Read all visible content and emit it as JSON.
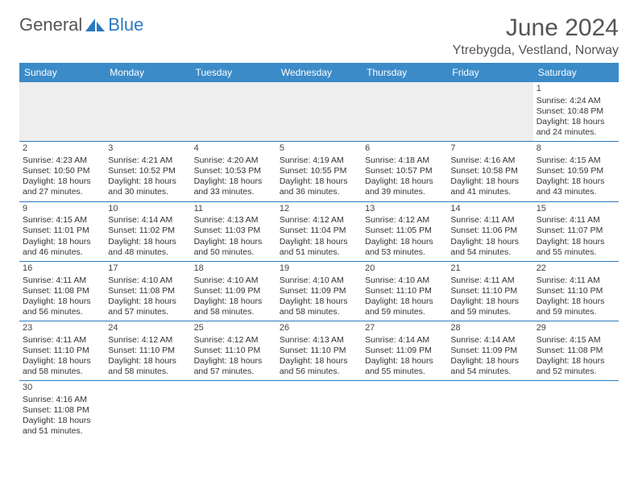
{
  "branding": {
    "word1": "General",
    "word2": "Blue",
    "logo_color": "#2a7ac0"
  },
  "header": {
    "title": "June 2024",
    "location": "Ytrebygda, Vestland, Norway"
  },
  "colors": {
    "header_bg": "#3b8bc9",
    "header_text": "#ffffff",
    "border": "#2a7ac0",
    "text": "#333333"
  },
  "weekdays": [
    "Sunday",
    "Monday",
    "Tuesday",
    "Wednesday",
    "Thursday",
    "Friday",
    "Saturday"
  ],
  "weeks": [
    [
      null,
      null,
      null,
      null,
      null,
      null,
      {
        "n": "1",
        "sr": "Sunrise: 4:24 AM",
        "ss": "Sunset: 10:48 PM",
        "d1": "Daylight: 18 hours",
        "d2": "and 24 minutes."
      }
    ],
    [
      {
        "n": "2",
        "sr": "Sunrise: 4:23 AM",
        "ss": "Sunset: 10:50 PM",
        "d1": "Daylight: 18 hours",
        "d2": "and 27 minutes."
      },
      {
        "n": "3",
        "sr": "Sunrise: 4:21 AM",
        "ss": "Sunset: 10:52 PM",
        "d1": "Daylight: 18 hours",
        "d2": "and 30 minutes."
      },
      {
        "n": "4",
        "sr": "Sunrise: 4:20 AM",
        "ss": "Sunset: 10:53 PM",
        "d1": "Daylight: 18 hours",
        "d2": "and 33 minutes."
      },
      {
        "n": "5",
        "sr": "Sunrise: 4:19 AM",
        "ss": "Sunset: 10:55 PM",
        "d1": "Daylight: 18 hours",
        "d2": "and 36 minutes."
      },
      {
        "n": "6",
        "sr": "Sunrise: 4:18 AM",
        "ss": "Sunset: 10:57 PM",
        "d1": "Daylight: 18 hours",
        "d2": "and 39 minutes."
      },
      {
        "n": "7",
        "sr": "Sunrise: 4:16 AM",
        "ss": "Sunset: 10:58 PM",
        "d1": "Daylight: 18 hours",
        "d2": "and 41 minutes."
      },
      {
        "n": "8",
        "sr": "Sunrise: 4:15 AM",
        "ss": "Sunset: 10:59 PM",
        "d1": "Daylight: 18 hours",
        "d2": "and 43 minutes."
      }
    ],
    [
      {
        "n": "9",
        "sr": "Sunrise: 4:15 AM",
        "ss": "Sunset: 11:01 PM",
        "d1": "Daylight: 18 hours",
        "d2": "and 46 minutes."
      },
      {
        "n": "10",
        "sr": "Sunrise: 4:14 AM",
        "ss": "Sunset: 11:02 PM",
        "d1": "Daylight: 18 hours",
        "d2": "and 48 minutes."
      },
      {
        "n": "11",
        "sr": "Sunrise: 4:13 AM",
        "ss": "Sunset: 11:03 PM",
        "d1": "Daylight: 18 hours",
        "d2": "and 50 minutes."
      },
      {
        "n": "12",
        "sr": "Sunrise: 4:12 AM",
        "ss": "Sunset: 11:04 PM",
        "d1": "Daylight: 18 hours",
        "d2": "and 51 minutes."
      },
      {
        "n": "13",
        "sr": "Sunrise: 4:12 AM",
        "ss": "Sunset: 11:05 PM",
        "d1": "Daylight: 18 hours",
        "d2": "and 53 minutes."
      },
      {
        "n": "14",
        "sr": "Sunrise: 4:11 AM",
        "ss": "Sunset: 11:06 PM",
        "d1": "Daylight: 18 hours",
        "d2": "and 54 minutes."
      },
      {
        "n": "15",
        "sr": "Sunrise: 4:11 AM",
        "ss": "Sunset: 11:07 PM",
        "d1": "Daylight: 18 hours",
        "d2": "and 55 minutes."
      }
    ],
    [
      {
        "n": "16",
        "sr": "Sunrise: 4:11 AM",
        "ss": "Sunset: 11:08 PM",
        "d1": "Daylight: 18 hours",
        "d2": "and 56 minutes."
      },
      {
        "n": "17",
        "sr": "Sunrise: 4:10 AM",
        "ss": "Sunset: 11:08 PM",
        "d1": "Daylight: 18 hours",
        "d2": "and 57 minutes."
      },
      {
        "n": "18",
        "sr": "Sunrise: 4:10 AM",
        "ss": "Sunset: 11:09 PM",
        "d1": "Daylight: 18 hours",
        "d2": "and 58 minutes."
      },
      {
        "n": "19",
        "sr": "Sunrise: 4:10 AM",
        "ss": "Sunset: 11:09 PM",
        "d1": "Daylight: 18 hours",
        "d2": "and 58 minutes."
      },
      {
        "n": "20",
        "sr": "Sunrise: 4:10 AM",
        "ss": "Sunset: 11:10 PM",
        "d1": "Daylight: 18 hours",
        "d2": "and 59 minutes."
      },
      {
        "n": "21",
        "sr": "Sunrise: 4:11 AM",
        "ss": "Sunset: 11:10 PM",
        "d1": "Daylight: 18 hours",
        "d2": "and 59 minutes."
      },
      {
        "n": "22",
        "sr": "Sunrise: 4:11 AM",
        "ss": "Sunset: 11:10 PM",
        "d1": "Daylight: 18 hours",
        "d2": "and 59 minutes."
      }
    ],
    [
      {
        "n": "23",
        "sr": "Sunrise: 4:11 AM",
        "ss": "Sunset: 11:10 PM",
        "d1": "Daylight: 18 hours",
        "d2": "and 58 minutes."
      },
      {
        "n": "24",
        "sr": "Sunrise: 4:12 AM",
        "ss": "Sunset: 11:10 PM",
        "d1": "Daylight: 18 hours",
        "d2": "and 58 minutes."
      },
      {
        "n": "25",
        "sr": "Sunrise: 4:12 AM",
        "ss": "Sunset: 11:10 PM",
        "d1": "Daylight: 18 hours",
        "d2": "and 57 minutes."
      },
      {
        "n": "26",
        "sr": "Sunrise: 4:13 AM",
        "ss": "Sunset: 11:10 PM",
        "d1": "Daylight: 18 hours",
        "d2": "and 56 minutes."
      },
      {
        "n": "27",
        "sr": "Sunrise: 4:14 AM",
        "ss": "Sunset: 11:09 PM",
        "d1": "Daylight: 18 hours",
        "d2": "and 55 minutes."
      },
      {
        "n": "28",
        "sr": "Sunrise: 4:14 AM",
        "ss": "Sunset: 11:09 PM",
        "d1": "Daylight: 18 hours",
        "d2": "and 54 minutes."
      },
      {
        "n": "29",
        "sr": "Sunrise: 4:15 AM",
        "ss": "Sunset: 11:08 PM",
        "d1": "Daylight: 18 hours",
        "d2": "and 52 minutes."
      }
    ],
    [
      {
        "n": "30",
        "sr": "Sunrise: 4:16 AM",
        "ss": "Sunset: 11:08 PM",
        "d1": "Daylight: 18 hours",
        "d2": "and 51 minutes."
      },
      null,
      null,
      null,
      null,
      null,
      null
    ]
  ]
}
